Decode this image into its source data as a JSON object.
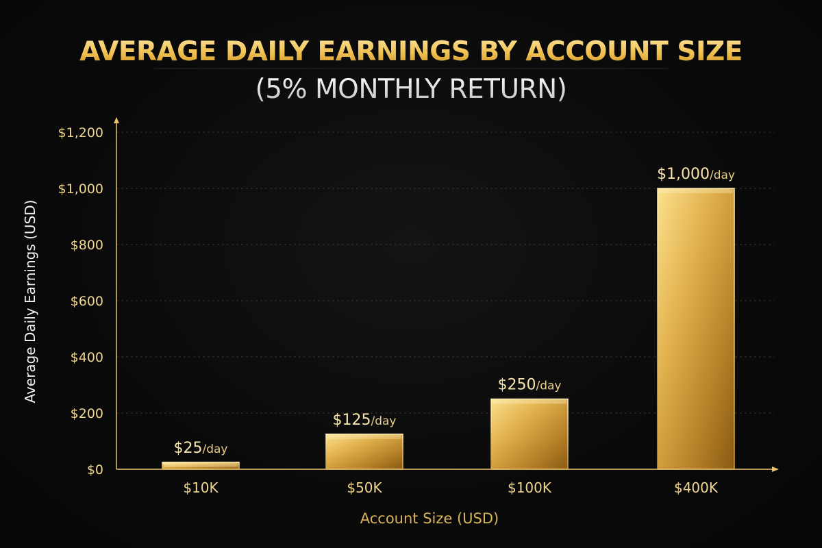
{
  "chart_data": {
    "type": "bar",
    "title": "AVERAGE DAILY EARNINGS BY ACCOUNT SIZE",
    "subtitle": "(5% MONTHLY RETURN)",
    "xlabel": "Account Size (USD)",
    "ylabel": "Average Daily Earnings (USD)",
    "categories": [
      "$10K",
      "$50K",
      "$100K",
      "$400K"
    ],
    "values": [
      25,
      125,
      250,
      1000
    ],
    "data_labels": [
      {
        "amount": "$25",
        "unit": "/day"
      },
      {
        "amount": "$125",
        "unit": "/day"
      },
      {
        "amount": "$250",
        "unit": "/day"
      },
      {
        "amount": "$1,000",
        "unit": "/day"
      }
    ],
    "yticks": [
      0,
      200,
      400,
      600,
      800,
      1000,
      1200
    ],
    "ytick_labels": [
      "$0",
      "$200",
      "$400",
      "$600",
      "$800",
      "$1,000",
      "$1,200"
    ],
    "ylim": [
      0,
      1200
    ],
    "grid": true,
    "legend": "none",
    "colors": {
      "bar_light": "#f5d57a",
      "bar_dark": "#8a5a12",
      "title": "#f2c65a",
      "subtitle": "#e6e6e6",
      "axis": "#e8c46a",
      "tick_text": "#f0d690",
      "xlabel": "#d9b45a",
      "ylabel": "#f2f2f2",
      "grid": "#3a3524"
    }
  }
}
